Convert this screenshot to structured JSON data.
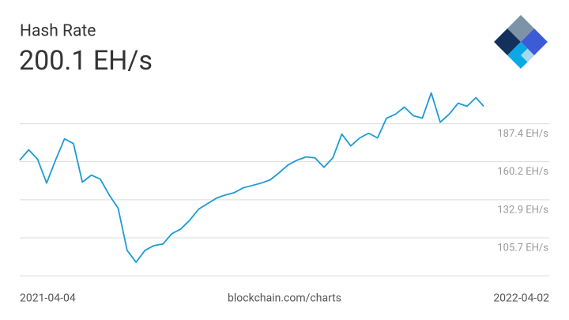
{
  "chart_data": {
    "type": "line",
    "title": "Hash Rate",
    "headline": "200.1 EH/s",
    "source": "blockchain.com/charts",
    "color": "#1b9bd6",
    "grid": true,
    "xlim": [
      "2021-04-04",
      "2022-04-02"
    ],
    "ylim": [
      78.5,
      220
    ],
    "yticks": [
      {
        "value": 105.7,
        "label": "105.7 EH/s"
      },
      {
        "value": 132.9,
        "label": "132.9 EH/s"
      },
      {
        "value": 160.2,
        "label": "160.2 EH/s"
      },
      {
        "value": 187.4,
        "label": "187.4 EH/s"
      }
    ],
    "x": [
      "2021-04-04",
      "2021-04-11",
      "2021-04-18",
      "2021-04-25",
      "2021-05-02",
      "2021-05-09",
      "2021-05-16",
      "2021-05-23",
      "2021-05-30",
      "2021-06-06",
      "2021-06-13",
      "2021-06-20",
      "2021-06-27",
      "2021-07-04",
      "2021-07-11",
      "2021-07-18",
      "2021-07-25",
      "2021-08-01",
      "2021-08-08",
      "2021-08-15",
      "2021-08-22",
      "2021-08-29",
      "2021-09-05",
      "2021-09-12",
      "2021-09-19",
      "2021-09-26",
      "2021-10-03",
      "2021-10-10",
      "2021-10-17",
      "2021-10-24",
      "2021-10-31",
      "2021-11-07",
      "2021-11-14",
      "2021-11-21",
      "2021-11-28",
      "2021-12-05",
      "2021-12-12",
      "2021-12-19",
      "2021-12-26",
      "2022-01-02",
      "2022-01-09",
      "2022-01-16",
      "2022-01-23",
      "2022-01-30",
      "2022-02-06",
      "2022-02-13",
      "2022-02-20",
      "2022-02-27",
      "2022-03-06",
      "2022-03-13",
      "2022-03-20",
      "2022-03-27",
      "2022-04-02"
    ],
    "values": [
      161.3,
      168.7,
      161.9,
      144.9,
      161.3,
      176.6,
      173.2,
      145.5,
      150.6,
      147.7,
      136.4,
      126.8,
      96.7,
      88.2,
      96.7,
      100.1,
      101.3,
      108.6,
      112.0,
      118.3,
      126.2,
      130.2,
      134.1,
      136.4,
      138.1,
      141.5,
      143.2,
      144.9,
      147.2,
      152.3,
      157.9,
      161.3,
      163.6,
      163.0,
      156.2,
      163.0,
      180.0,
      171.5,
      177.2,
      180.6,
      177.2,
      191.4,
      194.2,
      199.3,
      193.1,
      191.4,
      209.5,
      188.5,
      194.2,
      202.1,
      199.9,
      206.1,
      199.9
    ]
  }
}
